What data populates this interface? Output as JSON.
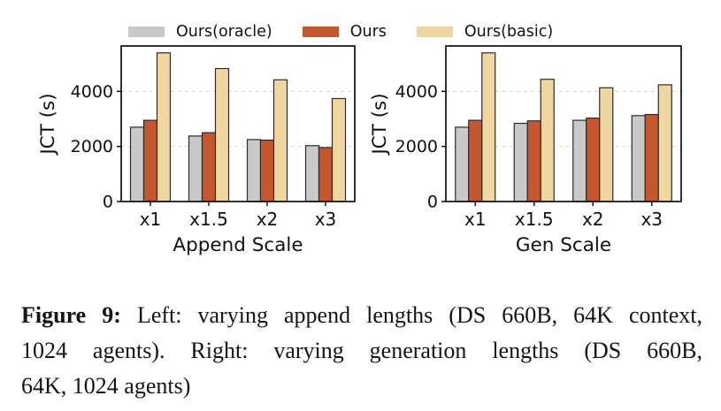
{
  "colors": {
    "oracle": "#c9c9c9",
    "ours": "#c5572f",
    "basic": "#f0d7a2",
    "bar_edge": "#2b2b2b",
    "grid": "#d4d4d4",
    "text": "#111111"
  },
  "legend": {
    "items": [
      {
        "label": "Ours(oracle)",
        "color": "#c9c9c9"
      },
      {
        "label": "Ours",
        "color": "#c5572f"
      },
      {
        "label": "Ours(basic)",
        "color": "#f0d7a2"
      }
    ]
  },
  "chart_data": [
    {
      "type": "bar",
      "title": "",
      "xlabel": "Append Scale",
      "ylabel": "JCT (s)",
      "categories": [
        "x1",
        "x1.5",
        "x2",
        "x3"
      ],
      "series": [
        {
          "name": "Ours(oracle)",
          "color": "#c9c9c9",
          "values": [
            2700,
            2380,
            2250,
            2030
          ]
        },
        {
          "name": "Ours",
          "color": "#c5572f",
          "values": [
            2950,
            2500,
            2230,
            1960
          ]
        },
        {
          "name": "Ours(basic)",
          "color": "#f0d7a2",
          "values": [
            5400,
            4830,
            4420,
            3740
          ]
        }
      ],
      "yticks": [
        0,
        2000,
        4000
      ],
      "ylim": [
        0,
        5650
      ],
      "grid": true,
      "legend_position": "top"
    },
    {
      "type": "bar",
      "title": "",
      "xlabel": "Gen Scale",
      "ylabel": "JCT (s)",
      "categories": [
        "x1",
        "x1.5",
        "x2",
        "x3"
      ],
      "series": [
        {
          "name": "Ours(oracle)",
          "color": "#c9c9c9",
          "values": [
            2700,
            2840,
            2950,
            3120
          ]
        },
        {
          "name": "Ours",
          "color": "#c5572f",
          "values": [
            2950,
            2930,
            3030,
            3160
          ]
        },
        {
          "name": "Ours(basic)",
          "color": "#f0d7a2",
          "values": [
            5400,
            4440,
            4130,
            4240
          ]
        }
      ],
      "yticks": [
        0,
        2000,
        4000
      ],
      "ylim": [
        0,
        5650
      ],
      "grid": true,
      "legend_position": "top"
    }
  ],
  "caption": {
    "prefix": "Figure 9:",
    "line1": " Left: varying append lengths (DS 660B, 64K context,",
    "line2": "1024 agents). Right: varying generation lengths (DS 660B,",
    "line3": "64K, 1024 agents)"
  }
}
